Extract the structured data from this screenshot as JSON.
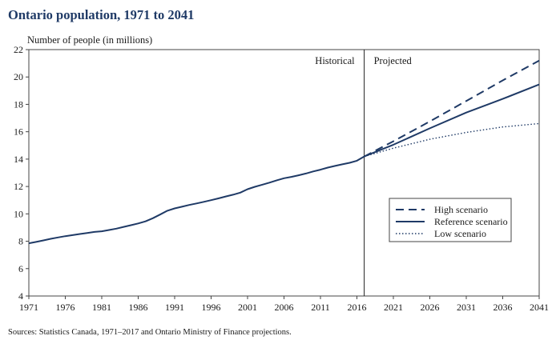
{
  "chart_data": {
    "type": "line",
    "title": "Ontario population, 1971 to 2041",
    "ylabel": "Number of people (in millions)",
    "xlabel": "",
    "xlim": [
      1971,
      2041
    ],
    "ylim": [
      4,
      22
    ],
    "yticks": [
      4,
      6,
      8,
      10,
      12,
      14,
      16,
      18,
      20,
      22
    ],
    "xticks": [
      1971,
      1976,
      1981,
      1986,
      1991,
      1996,
      2001,
      2006,
      2011,
      2016,
      2021,
      2026,
      2031,
      2036,
      2041
    ],
    "grid": false,
    "legend_position": "lower-right",
    "divider_year": 2017,
    "region_labels": {
      "historical": "Historical",
      "projected": "Projected"
    },
    "series": [
      {
        "name": "Reference scenario",
        "style": "solid",
        "x": [
          1971,
          1972,
          1973,
          1974,
          1975,
          1976,
          1977,
          1978,
          1979,
          1980,
          1981,
          1982,
          1983,
          1984,
          1985,
          1986,
          1987,
          1988,
          1989,
          1990,
          1991,
          1992,
          1993,
          1994,
          1995,
          1996,
          1997,
          1998,
          1999,
          2000,
          2001,
          2002,
          2003,
          2004,
          2005,
          2006,
          2007,
          2008,
          2009,
          2010,
          2011,
          2012,
          2013,
          2014,
          2015,
          2016,
          2017,
          2021,
          2026,
          2031,
          2036,
          2041
        ],
        "values": [
          7.85,
          7.95,
          8.06,
          8.18,
          8.28,
          8.37,
          8.45,
          8.53,
          8.6,
          8.68,
          8.73,
          8.82,
          8.92,
          9.05,
          9.17,
          9.3,
          9.45,
          9.68,
          9.95,
          10.23,
          10.4,
          10.52,
          10.65,
          10.76,
          10.88,
          11.0,
          11.13,
          11.27,
          11.4,
          11.55,
          11.8,
          11.98,
          12.13,
          12.28,
          12.45,
          12.6,
          12.7,
          12.82,
          12.95,
          13.1,
          13.23,
          13.38,
          13.5,
          13.62,
          13.73,
          13.88,
          14.19,
          15.05,
          16.25,
          17.4,
          18.4,
          19.45
        ]
      },
      {
        "name": "High scenario",
        "style": "dashed",
        "x": [
          2017,
          2021,
          2026,
          2031,
          2036,
          2041
        ],
        "values": [
          14.19,
          15.3,
          16.75,
          18.25,
          19.75,
          21.2
        ]
      },
      {
        "name": "Low scenario",
        "style": "dotted",
        "x": [
          2017,
          2021,
          2026,
          2031,
          2036,
          2041
        ],
        "values": [
          14.19,
          14.8,
          15.45,
          15.95,
          16.35,
          16.6
        ]
      }
    ],
    "source": "Sources:  Statistics Canada, 1971–2017 and Ontario Ministry of Finance projections."
  }
}
